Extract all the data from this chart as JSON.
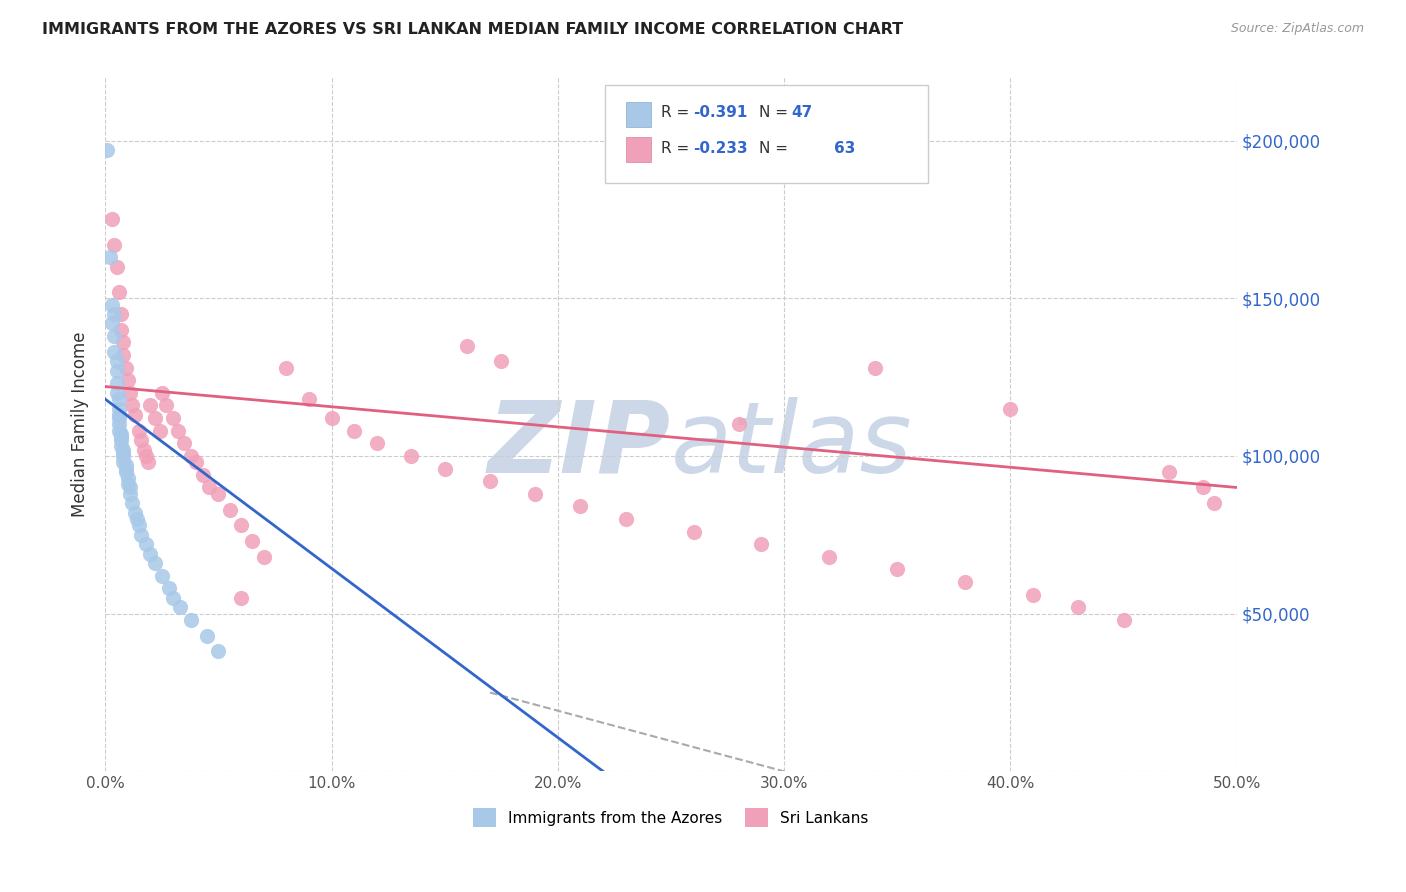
{
  "title": "IMMIGRANTS FROM THE AZORES VS SRI LANKAN MEDIAN FAMILY INCOME CORRELATION CHART",
  "source": "Source: ZipAtlas.com",
  "ylabel": "Median Family Income",
  "yticks": [
    0,
    50000,
    100000,
    150000,
    200000
  ],
  "ytick_labels": [
    "",
    "$50,000",
    "$100,000",
    "$150,000",
    "$200,000"
  ],
  "xlim": [
    0.0,
    0.5
  ],
  "ylim": [
    0,
    220000
  ],
  "azores_color": "#a8c8e8",
  "srilanka_color": "#f0a0b8",
  "azores_line_color": "#3366cc",
  "srilanka_line_color": "#e06080",
  "watermark_color": "#ccd8e8",
  "background_color": "#ffffff",
  "azores_x": [
    0.001,
    0.002,
    0.003,
    0.003,
    0.004,
    0.004,
    0.004,
    0.005,
    0.005,
    0.005,
    0.005,
    0.006,
    0.006,
    0.006,
    0.006,
    0.006,
    0.006,
    0.007,
    0.007,
    0.007,
    0.007,
    0.008,
    0.008,
    0.008,
    0.008,
    0.009,
    0.009,
    0.009,
    0.01,
    0.01,
    0.011,
    0.011,
    0.012,
    0.013,
    0.014,
    0.015,
    0.016,
    0.018,
    0.02,
    0.022,
    0.025,
    0.028,
    0.03,
    0.033,
    0.038,
    0.045,
    0.05
  ],
  "azores_y": [
    197000,
    163000,
    148000,
    142000,
    145000,
    138000,
    133000,
    130000,
    127000,
    123000,
    120000,
    118000,
    115000,
    113000,
    112000,
    110000,
    108000,
    107000,
    106000,
    105000,
    103000,
    102000,
    101000,
    100000,
    98000,
    97000,
    96000,
    95000,
    93000,
    91000,
    90000,
    88000,
    85000,
    82000,
    80000,
    78000,
    75000,
    72000,
    69000,
    66000,
    62000,
    58000,
    55000,
    52000,
    48000,
    43000,
    38000
  ],
  "srilanka_x": [
    0.003,
    0.004,
    0.005,
    0.006,
    0.007,
    0.007,
    0.008,
    0.008,
    0.009,
    0.01,
    0.011,
    0.012,
    0.013,
    0.015,
    0.016,
    0.017,
    0.018,
    0.019,
    0.02,
    0.022,
    0.024,
    0.025,
    0.027,
    0.03,
    0.032,
    0.035,
    0.038,
    0.04,
    0.043,
    0.046,
    0.05,
    0.055,
    0.06,
    0.065,
    0.07,
    0.08,
    0.09,
    0.1,
    0.11,
    0.12,
    0.135,
    0.15,
    0.17,
    0.19,
    0.21,
    0.23,
    0.26,
    0.29,
    0.32,
    0.35,
    0.38,
    0.41,
    0.43,
    0.45,
    0.47,
    0.485,
    0.49,
    0.175,
    0.16,
    0.34,
    0.4,
    0.28,
    0.06
  ],
  "srilanka_y": [
    175000,
    167000,
    160000,
    152000,
    145000,
    140000,
    136000,
    132000,
    128000,
    124000,
    120000,
    116000,
    113000,
    108000,
    105000,
    102000,
    100000,
    98000,
    116000,
    112000,
    108000,
    120000,
    116000,
    112000,
    108000,
    104000,
    100000,
    98000,
    94000,
    90000,
    88000,
    83000,
    78000,
    73000,
    68000,
    128000,
    118000,
    112000,
    108000,
    104000,
    100000,
    96000,
    92000,
    88000,
    84000,
    80000,
    76000,
    72000,
    68000,
    64000,
    60000,
    56000,
    52000,
    48000,
    95000,
    90000,
    85000,
    130000,
    135000,
    128000,
    115000,
    110000,
    55000
  ],
  "az_line_x0": 0.0,
  "az_line_x1": 0.22,
  "az_line_y0": 118000,
  "az_line_y1": 0,
  "sl_line_x0": 0.0,
  "sl_line_x1": 0.5,
  "sl_line_y0": 122000,
  "sl_line_y1": 90000,
  "dash_line_x0": 0.17,
  "dash_line_x1": 0.3,
  "dash_line_y0": 25000,
  "dash_line_y1": 0
}
